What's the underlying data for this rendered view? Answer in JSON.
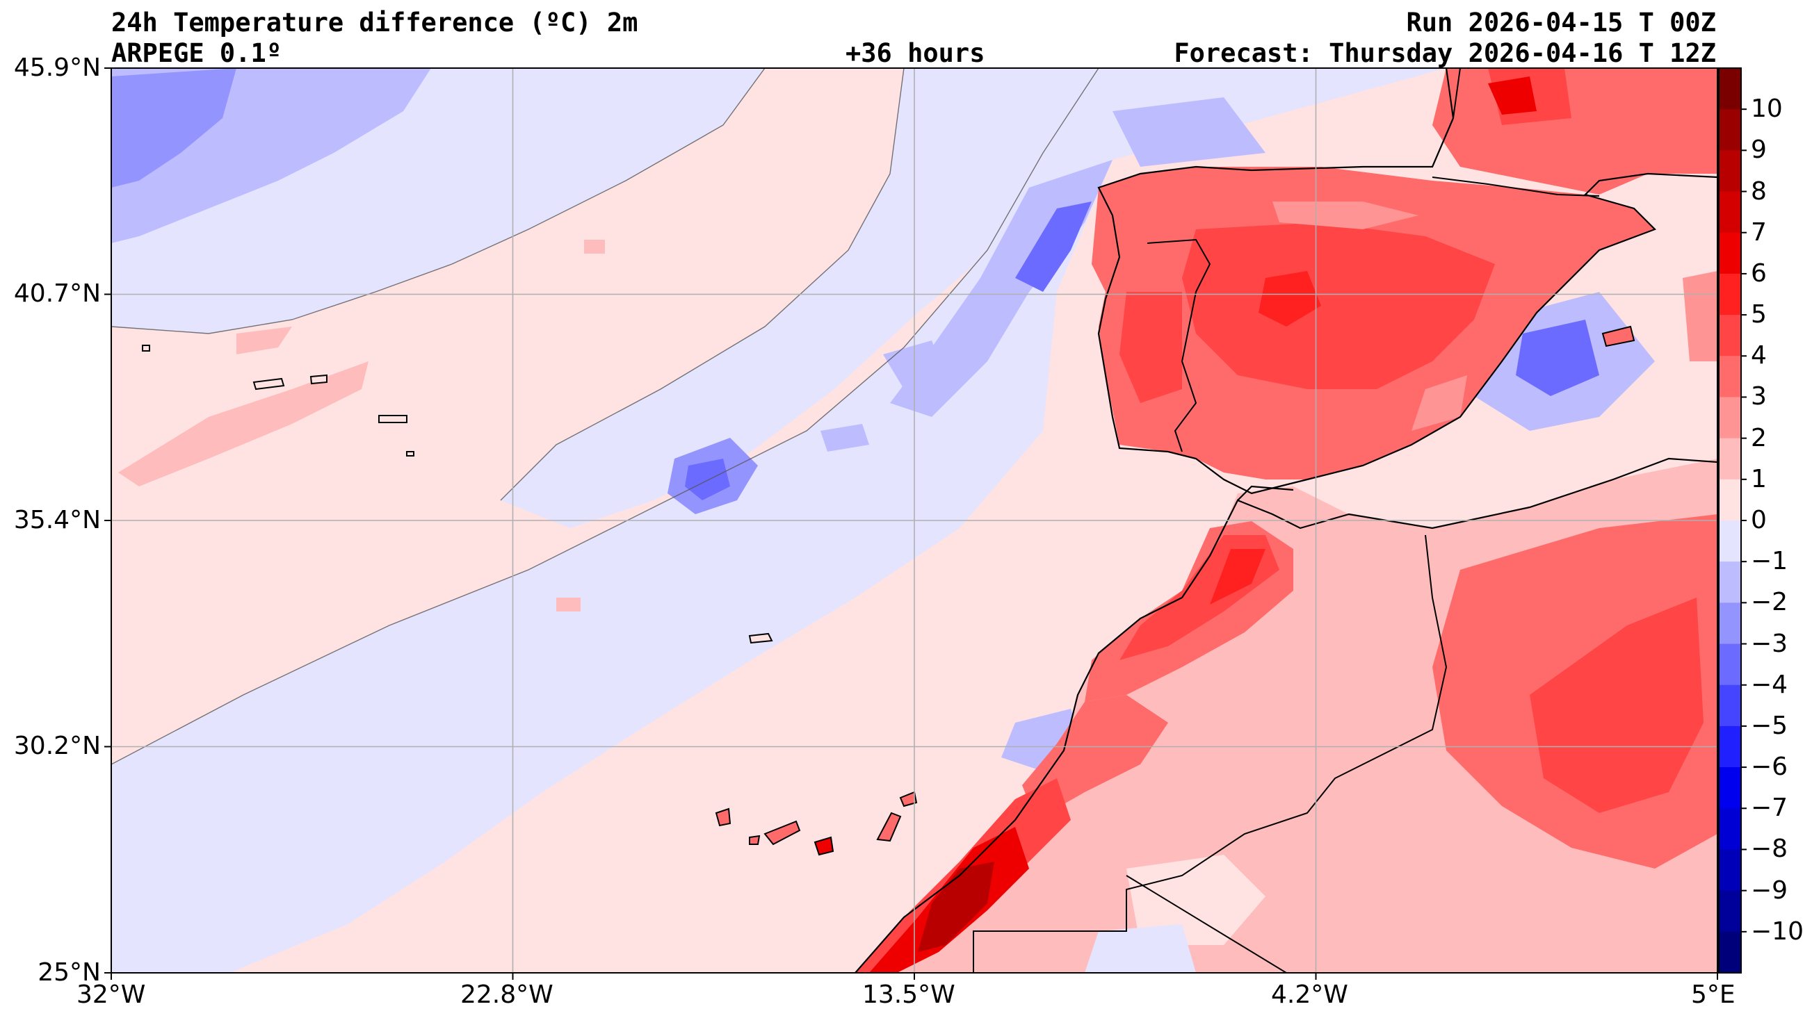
{
  "header": {
    "title_left_1": "24h Temperature difference (ºC) 2m",
    "title_left_2": "ARPEGE 0.1º",
    "title_center": "+36 hours",
    "title_right_1": "Run 2026-04-15 T 00Z",
    "title_right_2": "Forecast: Thursday 2026-04-16 T 12Z"
  },
  "map": {
    "lat_labels": [
      "45.9°N",
      "40.7°N",
      "35.4°N",
      "30.2°N",
      "25°N"
    ],
    "lon_labels": [
      "32°W",
      "22.8°W",
      "13.5°W",
      "4.2°W",
      "5°E"
    ],
    "extent": {
      "lon": [
        -32,
        5
      ],
      "lat": [
        25,
        45.9
      ]
    },
    "grid": true,
    "features": [
      "Iberian Peninsula",
      "Morocco",
      "Algeria",
      "Western Sahara",
      "Canary Islands",
      "Madeira",
      "Azores"
    ]
  },
  "colorbar": {
    "ticks": [
      "10",
      "9",
      "8",
      "7",
      "6",
      "5",
      "4",
      "3",
      "2",
      "1",
      "0",
      "−1",
      "−2",
      "−3",
      "−4",
      "−5",
      "−6",
      "−7",
      "−8",
      "−9",
      "−10"
    ],
    "colors_top_to_bottom": [
      "#7a0000",
      "#9a0000",
      "#b80000",
      "#d40000",
      "#ee0000",
      "#ff2020",
      "#ff4545",
      "#ff6b6b",
      "#ff9494",
      "#ffbcbc",
      "#ffe2e2",
      "#e4e4ff",
      "#bcbcff",
      "#9494ff",
      "#6b6bff",
      "#4545ff",
      "#2020ff",
      "#0000ee",
      "#0000d4",
      "#0000b8",
      "#00009a",
      "#00007a"
    ]
  }
}
